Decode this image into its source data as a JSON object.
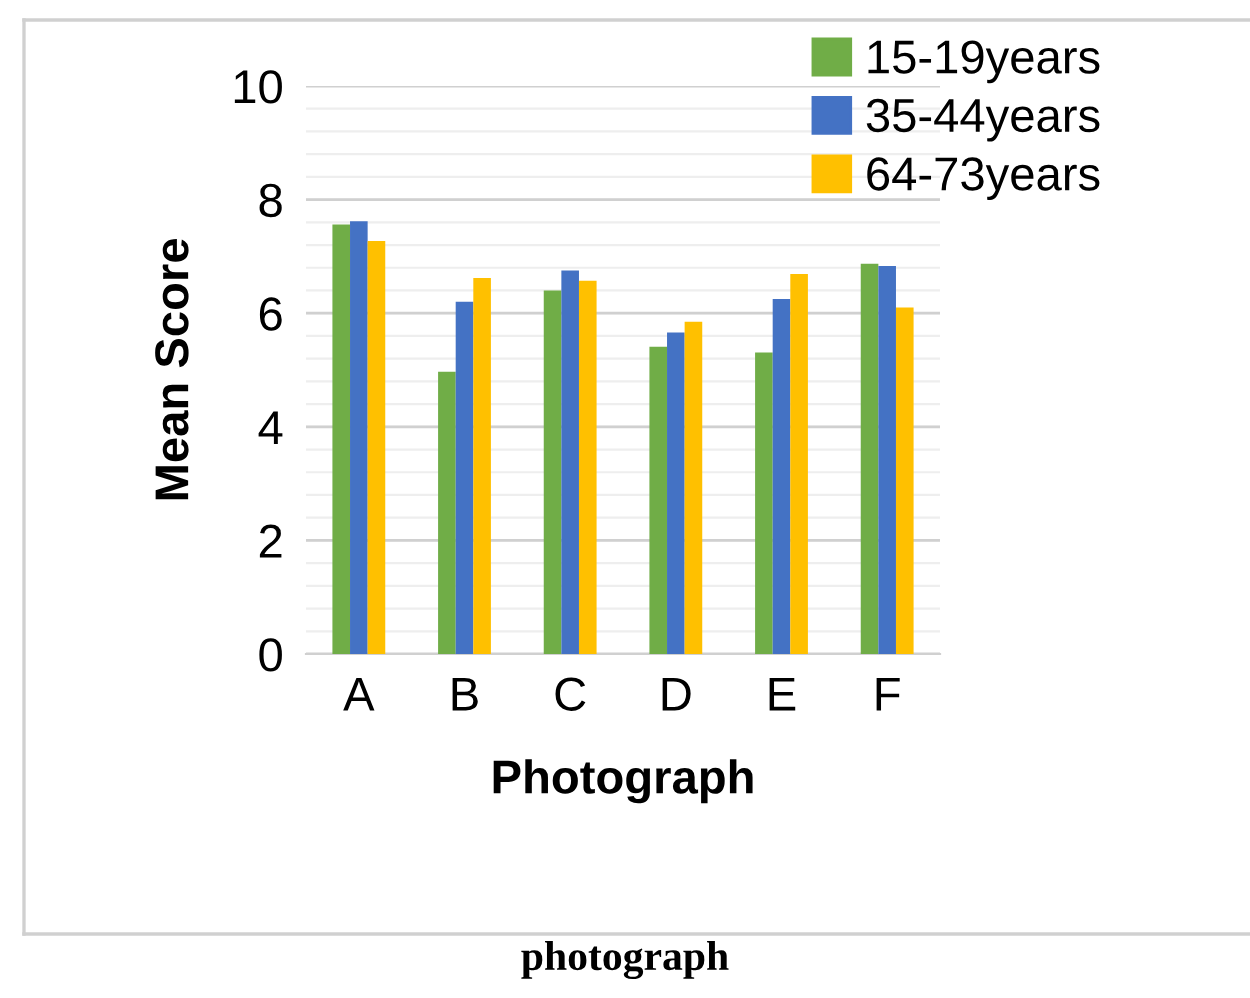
{
  "chart_data": {
    "type": "bar",
    "xlabel": "Photograph",
    "ylabel": "Mean Score",
    "categories": [
      "A",
      "B",
      "C",
      "D",
      "E",
      "F"
    ],
    "series": [
      {
        "name": "15-19years",
        "color": "#70ad47",
        "values": [
          7.56,
          4.97,
          6.4,
          5.41,
          5.31,
          6.87
        ]
      },
      {
        "name": "35-44years",
        "color": "#4472c4",
        "values": [
          7.62,
          6.2,
          6.75,
          5.66,
          6.25,
          6.83
        ]
      },
      {
        "name": "64-73years",
        "color": "#ffc000",
        "values": [
          7.27,
          6.62,
          6.57,
          5.85,
          6.69,
          6.1
        ]
      }
    ],
    "ylim": [
      0,
      10
    ],
    "yticks": [
      0,
      2,
      4,
      6,
      8,
      10
    ],
    "grid": "y",
    "legend": "top right",
    "annotations": [
      "photograph"
    ]
  }
}
